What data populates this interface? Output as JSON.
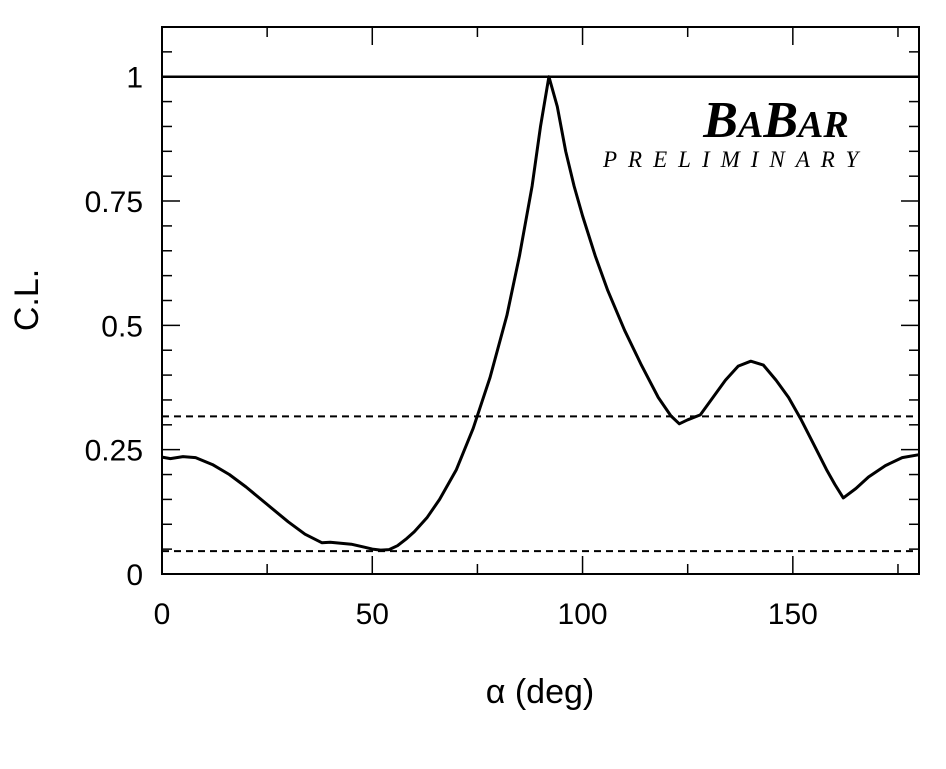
{
  "chart_data": {
    "type": "line",
    "xlabel": "α (deg)",
    "ylabel": "C.L.",
    "xlim": [
      0,
      180
    ],
    "ylim": [
      0,
      1.1
    ],
    "x_ticks": [
      0,
      50,
      100,
      150
    ],
    "x_tick_labels": [
      "0",
      "50",
      "100",
      "150"
    ],
    "y_ticks": [
      0,
      0.25,
      0.5,
      0.75,
      1
    ],
    "y_tick_labels": [
      "0",
      "0.25",
      "0.5",
      "0.75",
      "1"
    ],
    "grid": false,
    "logo": {
      "text": "BABAR",
      "subtitle": "PRELIMINARY"
    },
    "reference_lines": [
      {
        "y": 1.0,
        "style": "solid"
      },
      {
        "y": 0.317,
        "style": "dashed"
      },
      {
        "y": 0.046,
        "style": "dashed"
      }
    ],
    "series": [
      {
        "x": [
          0,
          2,
          5,
          8,
          12,
          16,
          20,
          25,
          30,
          34,
          38,
          40,
          45,
          48,
          50,
          52,
          54,
          56,
          58,
          60,
          63,
          66,
          70,
          74,
          78,
          82,
          85,
          88,
          90,
          92,
          94,
          96,
          98,
          100,
          103,
          106,
          110,
          114,
          118,
          121,
          123,
          125,
          128,
          131,
          134,
          137,
          140,
          143,
          146,
          149,
          152,
          155,
          158,
          160,
          162,
          165,
          168,
          172,
          176,
          180
        ],
        "y": [
          0.235,
          0.232,
          0.236,
          0.234,
          0.22,
          0.2,
          0.175,
          0.14,
          0.105,
          0.08,
          0.063,
          0.064,
          0.06,
          0.054,
          0.05,
          0.048,
          0.049,
          0.057,
          0.07,
          0.085,
          0.113,
          0.15,
          0.21,
          0.293,
          0.395,
          0.52,
          0.64,
          0.78,
          0.9,
          1.0,
          0.94,
          0.85,
          0.78,
          0.72,
          0.64,
          0.57,
          0.49,
          0.42,
          0.355,
          0.318,
          0.302,
          0.31,
          0.32,
          0.355,
          0.39,
          0.418,
          0.428,
          0.42,
          0.39,
          0.355,
          0.31,
          0.26,
          0.21,
          0.18,
          0.153,
          0.172,
          0.195,
          0.218,
          0.234,
          0.24
        ]
      }
    ]
  }
}
